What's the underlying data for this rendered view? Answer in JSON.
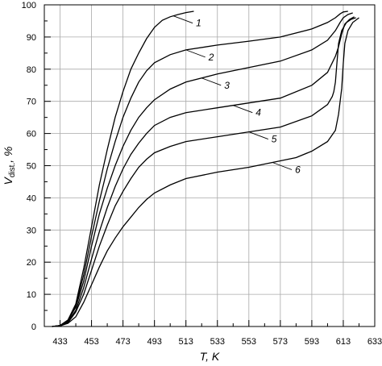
{
  "chart_data": {
    "type": "line",
    "xlabel": "T, K",
    "ylabel_main": "V",
    "ylabel_sub": "dist.",
    "ylabel_tail": ", %",
    "xlim": [
      423,
      633
    ],
    "ylim": [
      0,
      100
    ],
    "x_ticks": [
      433,
      453,
      473,
      493,
      513,
      533,
      553,
      573,
      593,
      613,
      633
    ],
    "y_ticks": [
      0,
      10,
      20,
      30,
      40,
      50,
      60,
      70,
      80,
      90,
      100
    ],
    "grid": true,
    "series": [
      {
        "name": "1",
        "label_at": [
          505,
          96
        ],
        "points": [
          [
            428,
            0
          ],
          [
            433,
            0.3
          ],
          [
            438,
            2
          ],
          [
            443,
            7
          ],
          [
            448,
            18
          ],
          [
            453,
            31
          ],
          [
            458,
            44
          ],
          [
            463,
            55
          ],
          [
            468,
            65
          ],
          [
            473,
            73
          ],
          [
            478,
            80
          ],
          [
            483,
            85
          ],
          [
            488,
            89.5
          ],
          [
            493,
            93
          ],
          [
            498,
            95.2
          ],
          [
            503,
            96.3
          ],
          [
            508,
            97
          ],
          [
            513,
            97.6
          ],
          [
            518,
            98
          ]
        ]
      },
      {
        "name": "2",
        "label_at": [
          513,
          86
        ],
        "points": [
          [
            428,
            0
          ],
          [
            433,
            0.3
          ],
          [
            438,
            2
          ],
          [
            443,
            6.5
          ],
          [
            448,
            16
          ],
          [
            453,
            28
          ],
          [
            458,
            39
          ],
          [
            463,
            49
          ],
          [
            468,
            57.5
          ],
          [
            473,
            65
          ],
          [
            478,
            71
          ],
          [
            483,
            76
          ],
          [
            488,
            79.5
          ],
          [
            493,
            82
          ],
          [
            503,
            84.5
          ],
          [
            513,
            86
          ],
          [
            533,
            87.5
          ],
          [
            553,
            88.7
          ],
          [
            573,
            90
          ],
          [
            593,
            92.5
          ],
          [
            603,
            94.5
          ],
          [
            608,
            96
          ],
          [
            611,
            97.2
          ],
          [
            613,
            97.8
          ],
          [
            616,
            98
          ]
        ]
      },
      {
        "name": "3",
        "label_at": [
          523,
          76
        ],
        "points": [
          [
            428,
            0
          ],
          [
            433,
            0.3
          ],
          [
            438,
            1.8
          ],
          [
            443,
            6
          ],
          [
            448,
            14
          ],
          [
            453,
            25
          ],
          [
            458,
            35
          ],
          [
            463,
            43
          ],
          [
            468,
            50
          ],
          [
            473,
            56
          ],
          [
            478,
            61
          ],
          [
            483,
            65
          ],
          [
            488,
            68
          ],
          [
            493,
            70.5
          ],
          [
            503,
            73.8
          ],
          [
            513,
            76
          ],
          [
            533,
            78.5
          ],
          [
            553,
            80.5
          ],
          [
            573,
            82.5
          ],
          [
            593,
            86
          ],
          [
            603,
            89
          ],
          [
            608,
            92
          ],
          [
            611,
            94.5
          ],
          [
            613,
            96
          ],
          [
            616,
            97
          ],
          [
            619,
            97.5
          ]
        ]
      },
      {
        "name": "4",
        "label_at": [
          543,
          67
        ],
        "points": [
          [
            428,
            0
          ],
          [
            433,
            0.2
          ],
          [
            438,
            1.5
          ],
          [
            443,
            5
          ],
          [
            448,
            12
          ],
          [
            453,
            21
          ],
          [
            458,
            29.5
          ],
          [
            463,
            37
          ],
          [
            468,
            43.5
          ],
          [
            473,
            49
          ],
          [
            478,
            53.5
          ],
          [
            483,
            57
          ],
          [
            488,
            60
          ],
          [
            493,
            62.5
          ],
          [
            503,
            65
          ],
          [
            513,
            66.5
          ],
          [
            533,
            68
          ],
          [
            553,
            69.5
          ],
          [
            573,
            71
          ],
          [
            593,
            75
          ],
          [
            603,
            79
          ],
          [
            606,
            82
          ],
          [
            608,
            84
          ],
          [
            610,
            87
          ],
          [
            612,
            91
          ],
          [
            614,
            94
          ],
          [
            617,
            95.5
          ],
          [
            620,
            96.3
          ]
        ]
      },
      {
        "name": "5",
        "label_at": [
          553,
          57
        ],
        "points": [
          [
            428,
            0
          ],
          [
            433,
            0.2
          ],
          [
            438,
            1.2
          ],
          [
            443,
            4.5
          ],
          [
            448,
            10
          ],
          [
            453,
            17.5
          ],
          [
            458,
            25
          ],
          [
            463,
            31.5
          ],
          [
            468,
            37.5
          ],
          [
            473,
            42
          ],
          [
            478,
            46
          ],
          [
            483,
            49.5
          ],
          [
            488,
            52
          ],
          [
            493,
            54
          ],
          [
            503,
            56
          ],
          [
            513,
            57.5
          ],
          [
            533,
            59
          ],
          [
            553,
            60.5
          ],
          [
            573,
            62
          ],
          [
            593,
            65.5
          ],
          [
            603,
            69
          ],
          [
            606,
            71.5
          ],
          [
            607,
            73
          ],
          [
            608,
            76
          ],
          [
            609,
            82
          ],
          [
            610,
            88
          ],
          [
            612,
            92
          ],
          [
            615,
            94.5
          ],
          [
            618,
            95.5
          ],
          [
            621,
            96
          ]
        ]
      },
      {
        "name": "6",
        "label_at": [
          568,
          47
        ],
        "points": [
          [
            428,
            0
          ],
          [
            433,
            0.2
          ],
          [
            438,
            1
          ],
          [
            443,
            3
          ],
          [
            448,
            7.5
          ],
          [
            453,
            13
          ],
          [
            458,
            18.5
          ],
          [
            463,
            23.5
          ],
          [
            468,
            27.5
          ],
          [
            473,
            31
          ],
          [
            478,
            34
          ],
          [
            483,
            37
          ],
          [
            488,
            39.5
          ],
          [
            493,
            41.5
          ],
          [
            503,
            44
          ],
          [
            513,
            46
          ],
          [
            533,
            48
          ],
          [
            553,
            49.5
          ],
          [
            563,
            50.5
          ],
          [
            573,
            51.5
          ],
          [
            583,
            52.5
          ],
          [
            593,
            54.5
          ],
          [
            603,
            57.5
          ],
          [
            608,
            61
          ],
          [
            610,
            66
          ],
          [
            612,
            74
          ],
          [
            613,
            82
          ],
          [
            614,
            88
          ],
          [
            616,
            92
          ],
          [
            619,
            94.5
          ],
          [
            623,
            96
          ]
        ]
      }
    ]
  }
}
